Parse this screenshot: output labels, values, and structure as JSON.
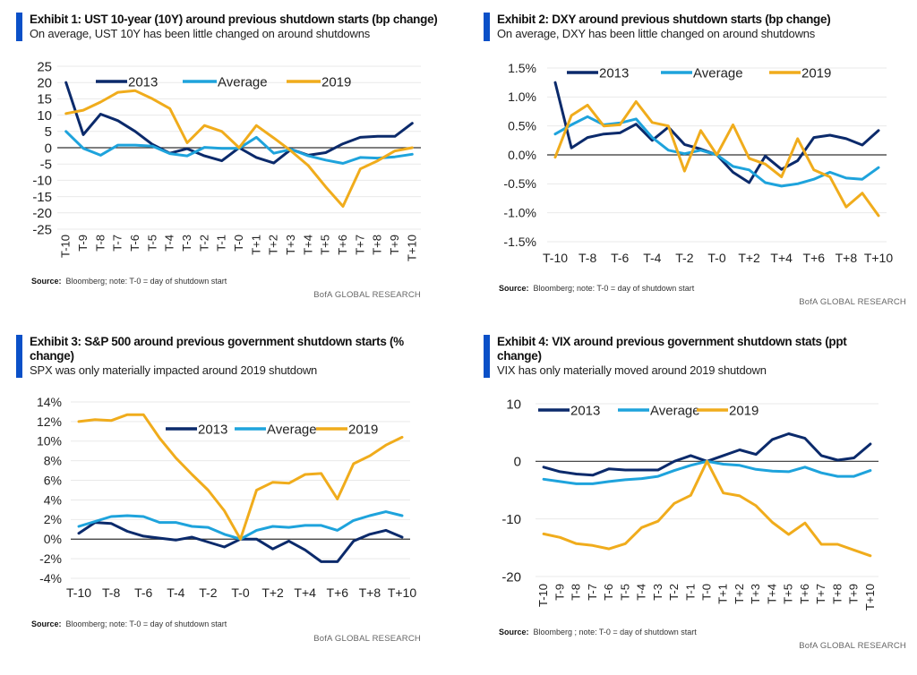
{
  "colors": {
    "s2013": "#0b2a6b",
    "average": "#1ea3dc",
    "s2019": "#f0ac1c",
    "accent": "#0a50c8",
    "grid": "#e9e9e9",
    "zero": "#333333"
  },
  "chart_data": [
    {
      "type": "line",
      "title": "Exhibit 1: UST 10-year (10Y) around previous shutdown starts (bp change)",
      "subtitle": "On average, UST 10Y has been little changed on around shutdowns",
      "source_label": "Source:",
      "source_text": "Bloomberg; note: T-0 = day of shutdown start",
      "credit": "BofA GLOBAL RESEARCH",
      "xlabel": "",
      "ylabel": "",
      "x": [
        "T-10",
        "T-9",
        "T-8",
        "T-7",
        "T-6",
        "T-5",
        "T-4",
        "T-3",
        "T-2",
        "T-1",
        "T-0",
        "T+1",
        "T+2",
        "T+3",
        "T+4",
        "T+5",
        "T+6",
        "T+7",
        "T+8",
        "T+9",
        "T+10"
      ],
      "x_tick_labels": [
        "T-10",
        "T-9",
        "T-8",
        "T-7",
        "T-6",
        "T-5",
        "T-4",
        "T-3",
        "T-2",
        "T-1",
        "T-0",
        "T+1",
        "T+2",
        "T+3",
        "T+4",
        "T+5",
        "T+6",
        "T+7",
        "T+8",
        "T+9",
        "T+10"
      ],
      "x_ticks_rotated": true,
      "ylim": [
        -25,
        25
      ],
      "yticks": [
        25,
        20,
        15,
        10,
        5,
        0,
        -5,
        -10,
        -15,
        -20,
        -25
      ],
      "ytick_labels": [
        "25",
        "20",
        "15",
        "10",
        "5",
        "0",
        "-5",
        "-10",
        "-15",
        "-20",
        "-25"
      ],
      "grid": true,
      "legend": "top",
      "series": [
        {
          "name": "2013",
          "values": [
            20,
            4,
            10.3,
            8.3,
            5,
            1,
            -1.7,
            -0.3,
            -2.5,
            -4,
            0,
            -3,
            -4.7,
            -0.5,
            -2.3,
            -1.5,
            1.2,
            3.2,
            3.5,
            3.5,
            7.5
          ]
        },
        {
          "name": "Average",
          "values": [
            5,
            -0.2,
            -2.3,
            0.8,
            0.8,
            0.5,
            -1.8,
            -2.5,
            0.1,
            -0.2,
            -0.2,
            3.2,
            -1.7,
            -0.5,
            -2.5,
            -3.8,
            -4.8,
            -3.0,
            -3.2,
            -2.8,
            -2.0
          ]
        },
        {
          "name": "2019",
          "values": [
            10.5,
            11.5,
            14,
            17,
            17.5,
            15,
            12,
            1.5,
            6.8,
            5,
            0,
            6.8,
            3,
            -1,
            -5.5,
            -12,
            -18,
            -6.5,
            -4,
            -1,
            0
          ]
        }
      ]
    },
    {
      "type": "line",
      "title": "Exhibit 2: DXY around previous shutdown starts (bp change)",
      "subtitle": "On average, DXY has been little changed on around shutdowns",
      "source_label": "Source:",
      "source_text": "Bloomberg; note: T-0 = day of shutdown start",
      "credit": "BofA GLOBAL RESEARCH",
      "xlabel": "",
      "ylabel": "",
      "x": [
        "T-10",
        "T-9",
        "T-8",
        "T-7",
        "T-6",
        "T-5",
        "T-4",
        "T-3",
        "T-2",
        "T-1",
        "T-0",
        "T+1",
        "T+2",
        "T+3",
        "T+4",
        "T+5",
        "T+6",
        "T+7",
        "T+8",
        "T+9",
        "T+10"
      ],
      "x_tick_labels": [
        "T-10",
        "",
        "T-8",
        "",
        "T-6",
        "",
        "T-4",
        "",
        "T-2",
        "",
        "T-0",
        "",
        "T+2",
        "",
        "T+4",
        "",
        "T+6",
        "",
        "T+8",
        "",
        "T+10"
      ],
      "x_ticks_rotated": false,
      "ylim": [
        -1.5,
        1.5
      ],
      "yticks": [
        1.5,
        1.0,
        0.5,
        0.0,
        -0.5,
        -1.0,
        -1.5
      ],
      "ytick_labels": [
        "1.5%",
        "1.0%",
        "0.5%",
        "0.0%",
        "-0.5%",
        "-1.0%",
        "-1.5%"
      ],
      "grid": true,
      "legend": "top",
      "series": [
        {
          "name": "2013",
          "values": [
            1.25,
            0.12,
            0.3,
            0.36,
            0.38,
            0.53,
            0.25,
            0.48,
            0.18,
            0.1,
            0,
            -0.3,
            -0.48,
            -0.02,
            -0.25,
            -0.1,
            0.3,
            0.34,
            0.28,
            0.17,
            0.42
          ]
        },
        {
          "name": "Average",
          "values": [
            0.36,
            0.52,
            0.66,
            0.52,
            0.55,
            0.62,
            0.3,
            0.08,
            0.02,
            0.08,
            0,
            -0.2,
            -0.26,
            -0.48,
            -0.54,
            -0.5,
            -0.42,
            -0.3,
            -0.4,
            -0.42,
            -0.22
          ]
        },
        {
          "name": "2019",
          "values": [
            -0.04,
            0.68,
            0.86,
            0.5,
            0.52,
            0.92,
            0.56,
            0.5,
            -0.28,
            0.42,
            0,
            0.52,
            -0.06,
            -0.16,
            -0.38,
            0.28,
            -0.26,
            -0.38,
            -0.9,
            -0.66,
            -1.05
          ]
        }
      ]
    },
    {
      "type": "line",
      "title": "Exhibit 3: S&P 500 around previous government shutdown starts (% change)",
      "title_lines": [
        "Exhibit 3: S&P 500 around previous government shutdown starts (%",
        "change)"
      ],
      "subtitle": "SPX was only materially impacted around 2019 shutdown",
      "source_label": "Source:",
      "source_text": "Bloomberg; note: T-0 = day of shutdown start",
      "credit": "BofA GLOBAL RESEARCH",
      "xlabel": "",
      "ylabel": "",
      "x": [
        "T-10",
        "T-9",
        "T-8",
        "T-7",
        "T-6",
        "T-5",
        "T-4",
        "T-3",
        "T-2",
        "T-1",
        "T-0",
        "T+1",
        "T+2",
        "T+3",
        "T+4",
        "T+5",
        "T+6",
        "T+7",
        "T+8",
        "T+9",
        "T+10"
      ],
      "x_tick_labels": [
        "T-10",
        "",
        "T-8",
        "",
        "T-6",
        "",
        "T-4",
        "",
        "T-2",
        "",
        "T-0",
        "",
        "T+2",
        "",
        "T+4",
        "",
        "T+6",
        "",
        "T+8",
        "",
        "T+10"
      ],
      "x_ticks_rotated": false,
      "ylim": [
        -4,
        14
      ],
      "yticks": [
        14,
        12,
        10,
        8,
        6,
        4,
        2,
        0,
        -2,
        -4
      ],
      "ytick_labels": [
        "14%",
        "12%",
        "10%",
        "8%",
        "6%",
        "4%",
        "2%",
        "0%",
        "-2%",
        "-4%"
      ],
      "grid": true,
      "legend": "top-right",
      "series": [
        {
          "name": "2013",
          "values": [
            0.6,
            1.7,
            1.6,
            0.8,
            0.3,
            0.1,
            -0.1,
            0.2,
            -0.3,
            -0.8,
            0,
            0,
            -1.0,
            -0.2,
            -1.1,
            -2.3,
            -2.3,
            -0.2,
            0.5,
            0.9,
            0.2
          ]
        },
        {
          "name": "Average",
          "values": [
            1.3,
            1.8,
            2.3,
            2.4,
            2.3,
            1.7,
            1.7,
            1.3,
            1.2,
            0.5,
            0,
            0.9,
            1.3,
            1.2,
            1.4,
            1.4,
            0.9,
            1.9,
            2.4,
            2.8,
            2.4
          ]
        },
        {
          "name": "2019",
          "values": [
            12.0,
            12.2,
            12.1,
            12.7,
            12.7,
            10.3,
            8.3,
            6.6,
            5.0,
            2.9,
            0,
            5.0,
            5.8,
            5.7,
            6.6,
            6.7,
            4.1,
            7.7,
            8.5,
            9.6,
            10.4
          ]
        }
      ]
    },
    {
      "type": "line",
      "title": "Exhibit 4: VIX around previous government shutdown stats (ppt change)",
      "title_lines": [
        "Exhibit 4: VIX around previous government shutdown stats (ppt",
        "change)"
      ],
      "subtitle": "VIX has only materially moved around 2019 shutdown",
      "source_label": "Source:",
      "source_text": "Bloomberg ; note: T-0 = day of shutdown start",
      "credit": "BofA GLOBAL RESEARCH",
      "xlabel": "",
      "ylabel": "",
      "x": [
        "T-10",
        "T-9",
        "T-8",
        "T-7",
        "T-6",
        "T-5",
        "T-4",
        "T-3",
        "T-2",
        "T-1",
        "T-0",
        "T+1",
        "T+2",
        "T+3",
        "T+4",
        "T+5",
        "T+6",
        "T+7",
        "T+8",
        "T+9",
        "T+10"
      ],
      "x_tick_labels": [
        "T-10",
        "T-9",
        "T-8",
        "T-7",
        "T-6",
        "T-5",
        "T-4",
        "T-3",
        "T-2",
        "T-1",
        "T-0",
        "T+1",
        "T+2",
        "T+3",
        "T+4",
        "T+5",
        "T+6",
        "T+7",
        "T+8",
        "T+9",
        "T+10"
      ],
      "x_ticks_rotated": true,
      "ylim": [
        -20,
        10
      ],
      "yticks": [
        10,
        0,
        -10,
        -20
      ],
      "ytick_labels": [
        "10",
        "0",
        "-10",
        "-20"
      ],
      "grid": true,
      "legend": "top",
      "series": [
        {
          "name": "2013",
          "values": [
            -1.0,
            -1.8,
            -2.2,
            -2.4,
            -1.3,
            -1.5,
            -1.5,
            -1.5,
            0.0,
            1.0,
            0,
            1.0,
            2.0,
            1.2,
            3.8,
            4.8,
            4.0,
            1.0,
            0.2,
            0.6,
            3.0
          ]
        },
        {
          "name": "Average",
          "values": [
            -3.1,
            -3.5,
            -3.9,
            -3.9,
            -3.5,
            -3.2,
            -3.0,
            -2.6,
            -1.6,
            -0.7,
            0,
            -0.5,
            -0.7,
            -1.4,
            -1.7,
            -1.8,
            -1.0,
            -2.0,
            -2.6,
            -2.6,
            -1.6
          ]
        },
        {
          "name": "2019",
          "values": [
            -12.6,
            -13.2,
            -14.3,
            -14.6,
            -15.2,
            -14.3,
            -11.5,
            -10.4,
            -7.3,
            -5.9,
            0,
            -5.5,
            -6.0,
            -7.7,
            -10.6,
            -12.7,
            -10.7,
            -14.4,
            -14.4,
            -15.4,
            -16.4
          ]
        }
      ]
    }
  ]
}
